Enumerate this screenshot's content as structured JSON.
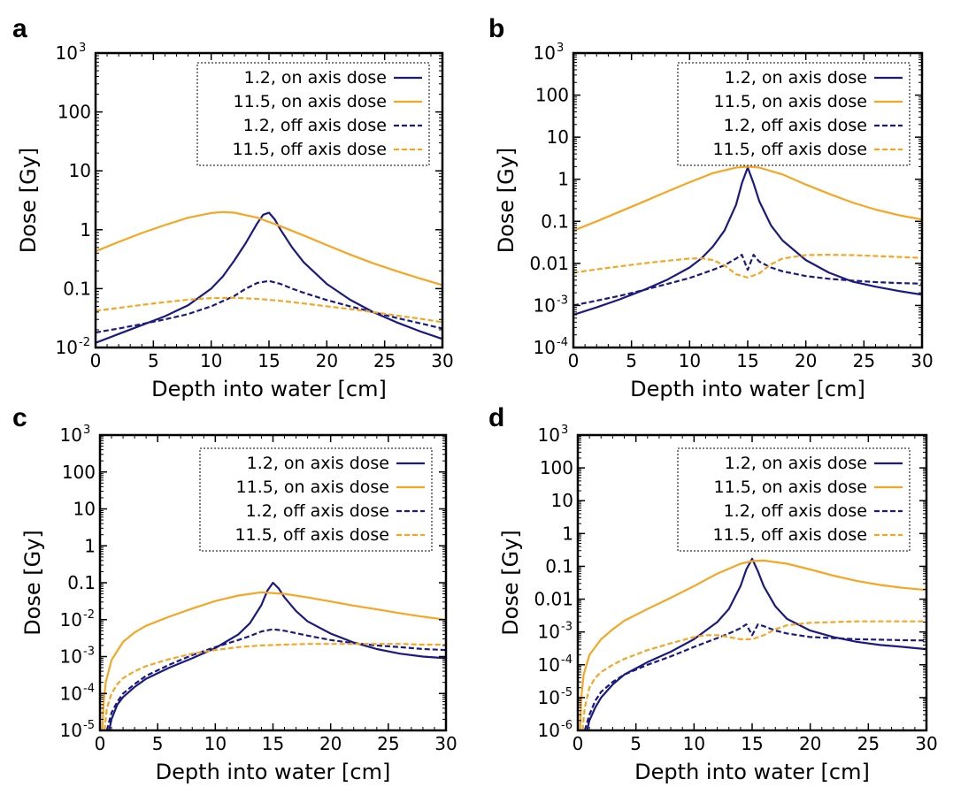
{
  "colors": {
    "navy": "#1a1a80",
    "orange": "#f5a623",
    "black": "#000000"
  },
  "chart_data": [
    {
      "panel": "a",
      "type": "line",
      "xlabel": "Depth into water [cm]",
      "ylabel": "Dose [Gy]",
      "xlim": [
        0,
        30
      ],
      "ylim": [
        0.01,
        1000
      ],
      "yscale": "log",
      "xticks": [
        0,
        5,
        10,
        15,
        20,
        25,
        30
      ],
      "yticks": [
        {
          "value": 0.01,
          "base": "10",
          "exp": "-2",
          "label": ""
        },
        {
          "value": 0.1,
          "label": "0.1"
        },
        {
          "value": 1,
          "label": "1"
        },
        {
          "value": 10,
          "label": "10"
        },
        {
          "value": 100,
          "label": "100"
        },
        {
          "value": 1000,
          "base": "10",
          "exp": "3",
          "label": ""
        }
      ],
      "legend_position": "top-right",
      "series": [
        {
          "name": "1.2, on axis dose",
          "color": "#1a1a80",
          "dash": false,
          "x": [
            0,
            2,
            4,
            6,
            8,
            10,
            11,
            12,
            13,
            14,
            14.5,
            15,
            15.5,
            16,
            17,
            18,
            20,
            22,
            24,
            26,
            28,
            30
          ],
          "y": [
            0.012,
            0.017,
            0.024,
            0.034,
            0.052,
            0.1,
            0.16,
            0.3,
            0.6,
            1.3,
            1.8,
            1.95,
            1.5,
            1.0,
            0.5,
            0.28,
            0.12,
            0.065,
            0.04,
            0.027,
            0.019,
            0.014
          ]
        },
        {
          "name": "11.5, on axis dose",
          "color": "#f5a623",
          "dash": false,
          "x": [
            0,
            2,
            4,
            6,
            8,
            10,
            11,
            12,
            14,
            16,
            18,
            20,
            22,
            24,
            26,
            28,
            30
          ],
          "y": [
            0.43,
            0.62,
            0.88,
            1.2,
            1.6,
            1.92,
            2.0,
            1.95,
            1.6,
            1.15,
            0.8,
            0.55,
            0.38,
            0.27,
            0.2,
            0.15,
            0.115
          ]
        },
        {
          "name": "1.2, off axis dose",
          "color": "#1a1a80",
          "dash": true,
          "x": [
            0,
            2,
            4,
            6,
            8,
            10,
            12,
            13,
            14,
            15,
            16,
            17,
            18,
            20,
            22,
            24,
            26,
            28,
            30
          ],
          "y": [
            0.018,
            0.021,
            0.025,
            0.03,
            0.037,
            0.05,
            0.075,
            0.1,
            0.125,
            0.135,
            0.12,
            0.1,
            0.085,
            0.064,
            0.05,
            0.04,
            0.032,
            0.026,
            0.021
          ]
        },
        {
          "name": "11.5, off axis dose",
          "color": "#f5a623",
          "dash": true,
          "x": [
            0,
            2,
            4,
            6,
            8,
            10,
            12,
            14,
            16,
            18,
            20,
            22,
            24,
            26,
            28,
            30
          ],
          "y": [
            0.042,
            0.047,
            0.053,
            0.059,
            0.065,
            0.069,
            0.07,
            0.067,
            0.062,
            0.056,
            0.05,
            0.045,
            0.04,
            0.035,
            0.031,
            0.027
          ]
        }
      ]
    },
    {
      "panel": "b",
      "type": "line",
      "xlabel": "Depth into water [cm]",
      "ylabel": "Dose [Gy]",
      "xlim": [
        0,
        30
      ],
      "ylim": [
        0.0001,
        1000
      ],
      "yscale": "log",
      "xticks": [
        0,
        5,
        10,
        15,
        20,
        25,
        30
      ],
      "yticks": [
        {
          "value": 0.0001,
          "base": "10",
          "exp": "-4",
          "label": ""
        },
        {
          "value": 0.001,
          "base": "10",
          "exp": "-3",
          "label": ""
        },
        {
          "value": 0.01,
          "label": "0.01"
        },
        {
          "value": 0.1,
          "label": "0.1"
        },
        {
          "value": 1,
          "label": "1"
        },
        {
          "value": 10,
          "label": "10"
        },
        {
          "value": 100,
          "label": "100"
        },
        {
          "value": 1000,
          "base": "10",
          "exp": "3",
          "label": ""
        }
      ],
      "legend_position": "top-right",
      "series": [
        {
          "name": "1.2, on axis dose",
          "color": "#1a1a80",
          "dash": false,
          "x": [
            0,
            2,
            4,
            6,
            8,
            10,
            11,
            12,
            13,
            14,
            14.5,
            15,
            15.5,
            16,
            17,
            18,
            20,
            22,
            24,
            26,
            28,
            30
          ],
          "y": [
            0.0006,
            0.0009,
            0.0014,
            0.0023,
            0.004,
            0.008,
            0.013,
            0.025,
            0.06,
            0.25,
            0.8,
            1.9,
            0.8,
            0.3,
            0.08,
            0.035,
            0.012,
            0.006,
            0.0037,
            0.0028,
            0.0022,
            0.0018
          ]
        },
        {
          "name": "11.5, on axis dose",
          "color": "#f5a623",
          "dash": false,
          "x": [
            0,
            2,
            4,
            6,
            8,
            10,
            12,
            14,
            15,
            16,
            18,
            20,
            22,
            24,
            26,
            28,
            30
          ],
          "y": [
            0.06,
            0.1,
            0.17,
            0.29,
            0.5,
            0.85,
            1.4,
            1.9,
            2.0,
            1.9,
            1.3,
            0.75,
            0.45,
            0.28,
            0.19,
            0.14,
            0.11
          ]
        },
        {
          "name": "1.2, off axis dose",
          "color": "#1a1a80",
          "dash": true,
          "x": [
            0,
            2,
            4,
            6,
            8,
            10,
            12,
            13,
            14,
            14.5,
            15,
            15.5,
            16,
            17,
            18,
            20,
            22,
            24,
            26,
            28,
            30
          ],
          "y": [
            0.001,
            0.0013,
            0.0017,
            0.0023,
            0.0032,
            0.0045,
            0.007,
            0.009,
            0.013,
            0.016,
            0.007,
            0.016,
            0.011,
            0.008,
            0.0065,
            0.005,
            0.0043,
            0.0039,
            0.0036,
            0.0034,
            0.0033
          ]
        },
        {
          "name": "11.5, off axis dose",
          "color": "#f5a623",
          "dash": true,
          "x": [
            0,
            2,
            4,
            6,
            8,
            10,
            11,
            12,
            13,
            14,
            15,
            16,
            17,
            18,
            20,
            22,
            24,
            26,
            28,
            30
          ],
          "y": [
            0.006,
            0.0072,
            0.0085,
            0.01,
            0.0115,
            0.013,
            0.0132,
            0.012,
            0.009,
            0.0055,
            0.0046,
            0.0058,
            0.0095,
            0.013,
            0.0158,
            0.016,
            0.0157,
            0.015,
            0.0142,
            0.0135
          ]
        }
      ]
    },
    {
      "panel": "c",
      "type": "line",
      "xlabel": "Depth into water [cm]",
      "ylabel": "Dose [Gy]",
      "xlim": [
        0,
        30
      ],
      "ylim": [
        1e-05,
        1000
      ],
      "yscale": "log",
      "xticks": [
        0,
        5,
        10,
        15,
        20,
        25,
        30
      ],
      "yticks": [
        {
          "value": 1e-05,
          "base": "10",
          "exp": "-5",
          "label": ""
        },
        {
          "value": 0.0001,
          "base": "10",
          "exp": "-4",
          "label": ""
        },
        {
          "value": 0.001,
          "base": "10",
          "exp": "-3",
          "label": ""
        },
        {
          "value": 0.01,
          "base": "10",
          "exp": "-2",
          "label": ""
        },
        {
          "value": 0.1,
          "label": "0.1"
        },
        {
          "value": 1,
          "label": "1"
        },
        {
          "value": 10,
          "label": "10"
        },
        {
          "value": 100,
          "label": "100"
        },
        {
          "value": 1000,
          "base": "10",
          "exp": "3",
          "label": ""
        }
      ],
      "legend_position": "top-right",
      "series": [
        {
          "name": "1.2, on axis dose",
          "color": "#1a1a80",
          "dash": false,
          "x": [
            0.8,
            1.0,
            1.5,
            2,
            3,
            4,
            6,
            8,
            10,
            12,
            13,
            14,
            14.5,
            15,
            15.5,
            16,
            17,
            18,
            20,
            22,
            24,
            26,
            28,
            30
          ],
          "y": [
            1e-05,
            2e-05,
            5e-05,
            8e-05,
            0.00015,
            0.00025,
            0.0005,
            0.0009,
            0.0017,
            0.004,
            0.008,
            0.025,
            0.06,
            0.1,
            0.07,
            0.04,
            0.017,
            0.009,
            0.0042,
            0.0024,
            0.0016,
            0.0012,
            0.001,
            0.0009
          ]
        },
        {
          "name": "11.5, on axis dose",
          "color": "#f5a623",
          "dash": false,
          "x": [
            0.2,
            0.3,
            0.5,
            1,
            2,
            3,
            4,
            6,
            8,
            10,
            12,
            14,
            16,
            18,
            20,
            22,
            24,
            26,
            28,
            30
          ],
          "y": [
            1e-05,
            5e-05,
            0.0002,
            0.0008,
            0.0025,
            0.0045,
            0.0068,
            0.012,
            0.02,
            0.032,
            0.045,
            0.055,
            0.05,
            0.04,
            0.031,
            0.024,
            0.019,
            0.015,
            0.012,
            0.01
          ]
        },
        {
          "name": "1.2, off axis dose",
          "color": "#1a1a80",
          "dash": true,
          "x": [
            0.6,
            1,
            1.5,
            2,
            3,
            4,
            6,
            8,
            10,
            12,
            13,
            14,
            15,
            16,
            18,
            20,
            22,
            24,
            26,
            28,
            30
          ],
          "y": [
            1e-05,
            3e-05,
            6e-05,
            0.0001,
            0.00018,
            0.0003,
            0.0006,
            0.0011,
            0.0018,
            0.0028,
            0.0036,
            0.0048,
            0.0055,
            0.005,
            0.0037,
            0.0028,
            0.0023,
            0.002,
            0.0018,
            0.0016,
            0.0015
          ]
        },
        {
          "name": "11.5, off axis dose",
          "color": "#f5a623",
          "dash": true,
          "x": [
            0.4,
            0.6,
            1,
            1.5,
            2,
            3,
            4,
            6,
            8,
            10,
            12,
            14,
            16,
            18,
            20,
            22,
            24,
            26,
            28,
            30
          ],
          "y": [
            1e-05,
            4e-05,
            0.0001,
            0.00018,
            0.00026,
            0.0004,
            0.00055,
            0.00085,
            0.0012,
            0.0015,
            0.0018,
            0.002,
            0.0021,
            0.0022,
            0.0022,
            0.0022,
            0.0022,
            0.0022,
            0.0021,
            0.0021
          ]
        }
      ]
    },
    {
      "panel": "d",
      "type": "line",
      "xlabel": "Depth into water [cm]",
      "ylabel": "Dose [Gy]",
      "xlim": [
        0,
        30
      ],
      "ylim": [
        1e-06,
        1000
      ],
      "yscale": "log",
      "xticks": [
        0,
        5,
        10,
        15,
        20,
        25,
        30
      ],
      "yticks": [
        {
          "value": 1e-06,
          "base": "10",
          "exp": "-6",
          "label": ""
        },
        {
          "value": 1e-05,
          "base": "10",
          "exp": "-5",
          "label": ""
        },
        {
          "value": 0.0001,
          "base": "10",
          "exp": "-4",
          "label": ""
        },
        {
          "value": 0.001,
          "base": "10",
          "exp": "-3",
          "label": ""
        },
        {
          "value": 0.01,
          "label": "0.01"
        },
        {
          "value": 0.1,
          "label": "0.1"
        },
        {
          "value": 1,
          "label": "1"
        },
        {
          "value": 10,
          "label": "10"
        },
        {
          "value": 100,
          "label": "100"
        },
        {
          "value": 1000,
          "base": "10",
          "exp": "3",
          "label": ""
        }
      ],
      "legend_position": "top-right",
      "series": [
        {
          "name": "1.2, on axis dose",
          "color": "#1a1a80",
          "dash": false,
          "x": [
            0.8,
            1,
            1.5,
            2,
            3,
            4,
            6,
            8,
            10,
            12,
            13,
            14,
            14.5,
            15,
            15.5,
            16,
            17,
            18,
            20,
            22,
            24,
            26,
            28,
            30
          ],
          "y": [
            1e-06,
            2e-06,
            5e-06,
            1e-05,
            2.5e-05,
            5e-05,
            0.00012,
            0.00025,
            0.0006,
            0.002,
            0.005,
            0.025,
            0.08,
            0.17,
            0.07,
            0.025,
            0.006,
            0.0025,
            0.0011,
            0.0007,
            0.0005,
            0.0004,
            0.00035,
            0.0003
          ]
        },
        {
          "name": "11.5, on axis dose",
          "color": "#f5a623",
          "dash": false,
          "x": [
            0.2,
            0.3,
            0.5,
            1,
            2,
            3,
            4,
            6,
            8,
            10,
            12,
            14,
            15,
            16,
            18,
            20,
            22,
            24,
            26,
            28,
            30
          ],
          "y": [
            1e-06,
            1e-05,
            5e-05,
            0.0002,
            0.0006,
            0.0012,
            0.0022,
            0.005,
            0.011,
            0.025,
            0.06,
            0.12,
            0.145,
            0.15,
            0.12,
            0.08,
            0.052,
            0.036,
            0.027,
            0.022,
            0.019
          ]
        },
        {
          "name": "1.2, off axis dose",
          "color": "#1a1a80",
          "dash": true,
          "x": [
            0.6,
            1,
            1.5,
            2,
            3,
            4,
            6,
            8,
            10,
            12,
            13,
            14,
            14.5,
            15,
            15.5,
            16,
            17,
            18,
            20,
            22,
            24,
            26,
            28,
            30
          ],
          "y": [
            1e-06,
            3e-06,
            8e-06,
            1.5e-05,
            3e-05,
            5e-05,
            0.0001,
            0.00018,
            0.00035,
            0.00065,
            0.0009,
            0.0013,
            0.0017,
            0.0008,
            0.0017,
            0.0015,
            0.0011,
            0.0009,
            0.0007,
            0.00065,
            0.0006,
            0.00058,
            0.00056,
            0.00055
          ]
        },
        {
          "name": "11.5, off axis dose",
          "color": "#f5a623",
          "dash": true,
          "x": [
            0.4,
            0.6,
            1,
            1.5,
            2,
            3,
            4,
            6,
            8,
            10,
            11,
            12,
            13,
            14,
            15,
            16,
            17,
            18,
            20,
            22,
            24,
            26,
            28,
            30
          ],
          "y": [
            1e-06,
            5e-06,
            2e-05,
            4e-05,
            6e-05,
            0.0001,
            0.00015,
            0.00028,
            0.00045,
            0.0007,
            0.0008,
            0.0008,
            0.0007,
            0.0006,
            0.0006,
            0.0008,
            0.0012,
            0.0016,
            0.0019,
            0.002,
            0.0021,
            0.0021,
            0.0021,
            0.0021
          ]
        }
      ]
    }
  ]
}
